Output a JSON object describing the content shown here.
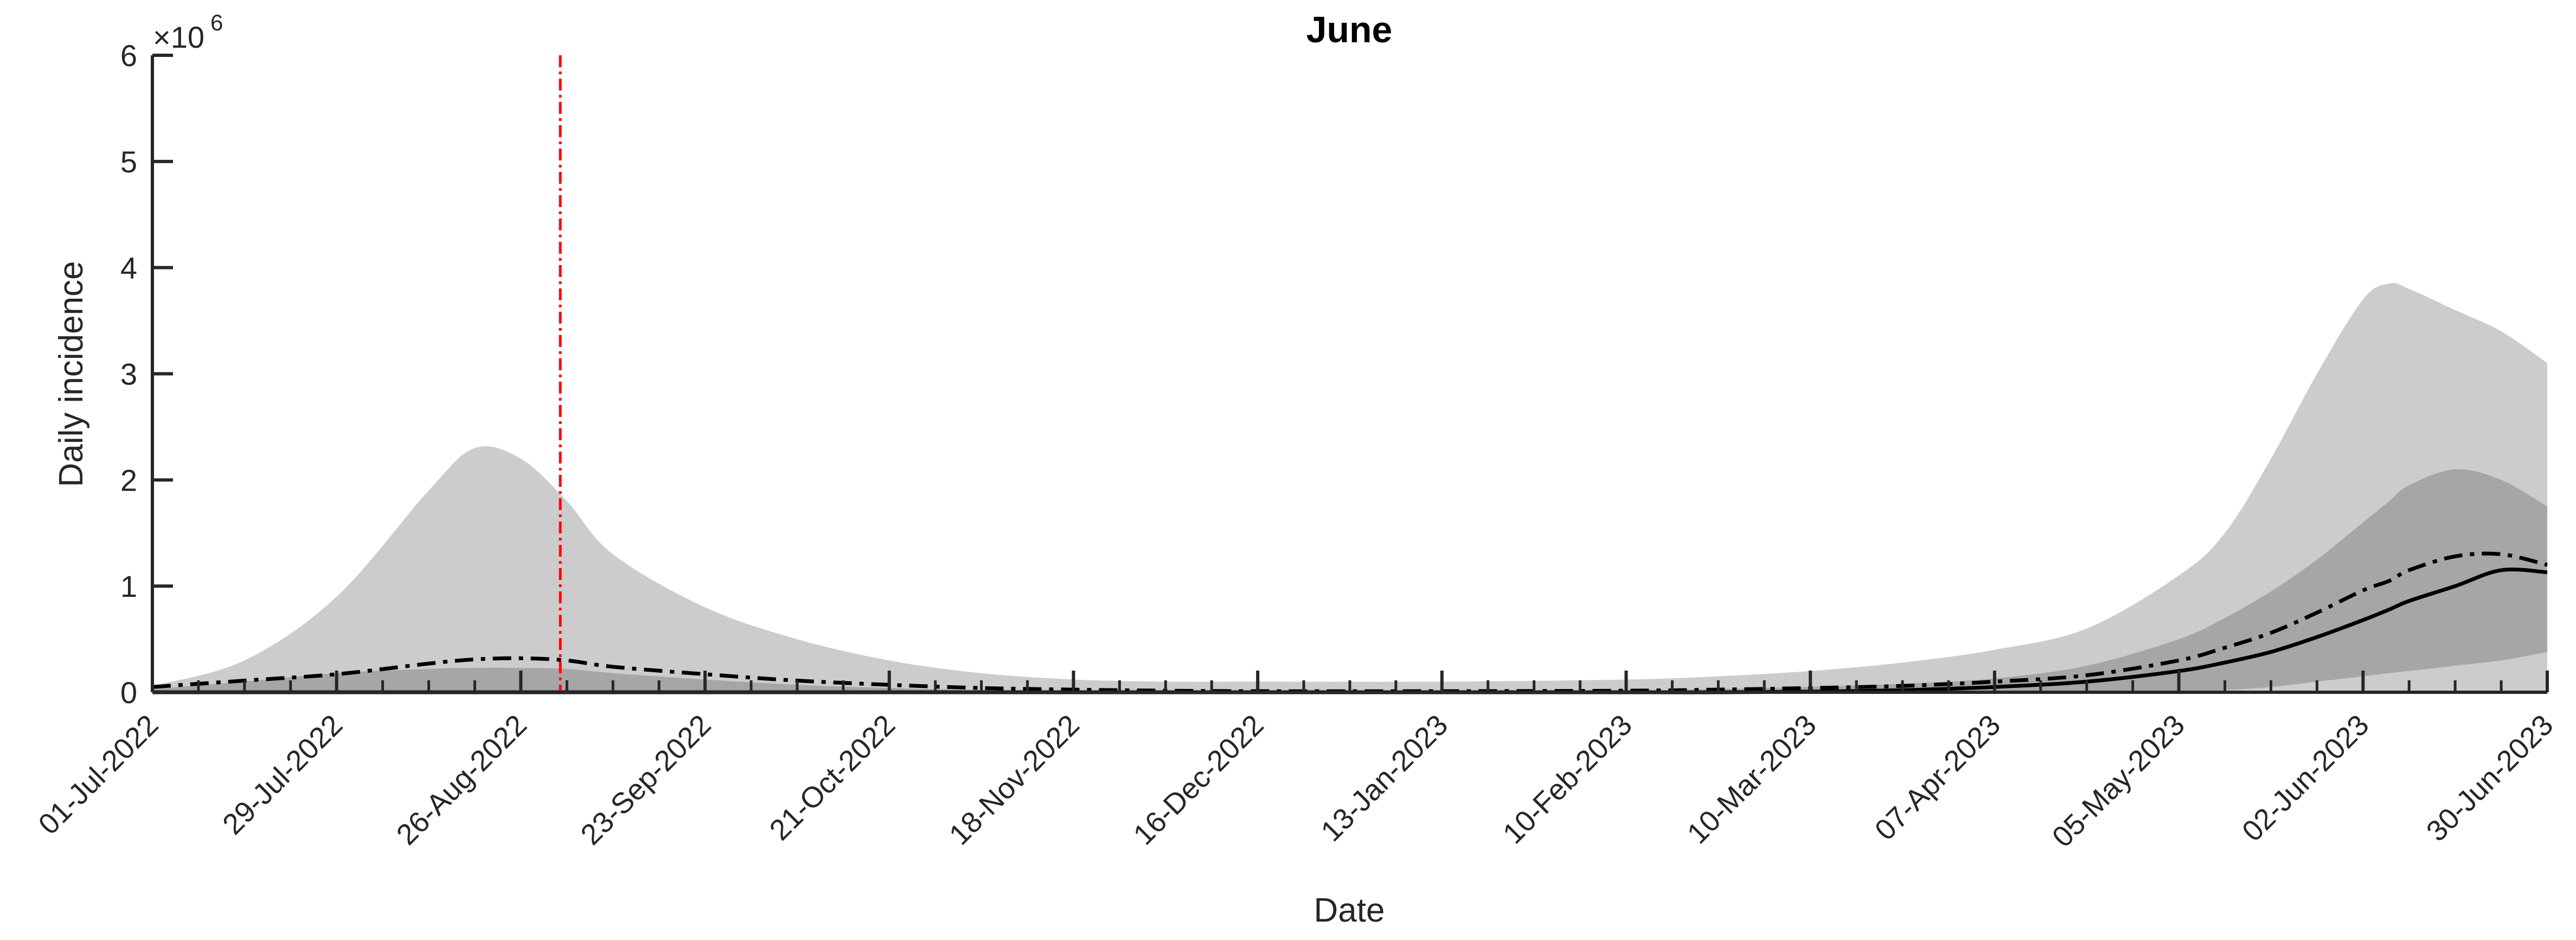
{
  "chart_data": {
    "type": "area",
    "title": "June",
    "xlabel": "Date",
    "ylabel": "Daily incidence",
    "y_exponent_label": "×10",
    "y_exponent_power": "6",
    "x_start": "2022-07-01",
    "x_end": "2023-06-30",
    "ylim": [
      0,
      6000000
    ],
    "y_ticks": [
      0,
      1000000,
      2000000,
      3000000,
      4000000,
      5000000,
      6000000
    ],
    "y_tick_labels": [
      "0",
      "1",
      "2",
      "3",
      "4",
      "5",
      "6"
    ],
    "x_ticks": [
      "2022-07-01",
      "2022-07-29",
      "2022-08-26",
      "2022-09-23",
      "2022-10-21",
      "2022-11-18",
      "2022-12-16",
      "2023-01-13",
      "2023-02-10",
      "2023-03-10",
      "2023-04-07",
      "2023-05-05",
      "2023-06-02",
      "2023-06-30"
    ],
    "x_tick_labels": [
      "01-Jul-2022",
      "29-Jul-2022",
      "26-Aug-2022",
      "23-Sep-2022",
      "21-Oct-2022",
      "18-Nov-2022",
      "16-Dec-2022",
      "13-Jan-2023",
      "10-Feb-2023",
      "10-Mar-2023",
      "07-Apr-2023",
      "05-May-2023",
      "02-Jun-2023",
      "30-Jun-2023"
    ],
    "vertical_marker_date": "2022-09-01",
    "grid": false,
    "legend": "none",
    "dates": [
      "2022-07-01",
      "2022-07-15",
      "2022-07-29",
      "2022-08-12",
      "2022-08-19",
      "2022-08-26",
      "2022-09-02",
      "2022-09-09",
      "2022-09-23",
      "2022-10-07",
      "2022-10-21",
      "2022-11-04",
      "2022-11-18",
      "2022-12-02",
      "2022-12-16",
      "2023-01-13",
      "2023-02-10",
      "2023-02-24",
      "2023-03-10",
      "2023-03-24",
      "2023-04-07",
      "2023-04-21",
      "2023-05-05",
      "2023-05-12",
      "2023-05-19",
      "2023-05-26",
      "2023-06-02",
      "2023-06-06",
      "2023-06-09",
      "2023-06-16",
      "2023-06-23",
      "2023-06-30"
    ],
    "bands": [
      {
        "color": "#cccccc",
        "lower": [
          0,
          0,
          0,
          0,
          0,
          0,
          0,
          0,
          0,
          0,
          0,
          0,
          0,
          0,
          0,
          0,
          0,
          0,
          0,
          0,
          0,
          0,
          0,
          0,
          0,
          0,
          0,
          0,
          0,
          0,
          0,
          0
        ],
        "upper": [
          60000,
          300000,
          900000,
          1900000,
          2300000,
          2200000,
          1800000,
          1300000,
          800000,
          500000,
          300000,
          180000,
          120000,
          100000,
          100000,
          100000,
          120000,
          150000,
          200000,
          280000,
          400000,
          600000,
          1100000,
          1500000,
          2200000,
          3000000,
          3700000,
          3850000,
          3800000,
          3600000,
          3400000,
          3100000
        ]
      },
      {
        "color": "#a6a6a6",
        "lower": [
          0,
          0,
          0,
          0,
          0,
          0,
          0,
          0,
          0,
          0,
          0,
          0,
          0,
          0,
          0,
          0,
          0,
          0,
          0,
          0,
          0,
          0,
          0,
          20000,
          50000,
          100000,
          150000,
          180000,
          200000,
          250000,
          300000,
          380000
        ],
        "upper": [
          30000,
          100000,
          180000,
          220000,
          230000,
          230000,
          220000,
          180000,
          120000,
          70000,
          40000,
          20000,
          10000,
          10000,
          10000,
          10000,
          15000,
          30000,
          50000,
          80000,
          130000,
          250000,
          500000,
          700000,
          950000,
          1250000,
          1600000,
          1800000,
          1950000,
          2100000,
          2000000,
          1750000
        ]
      }
    ],
    "series": [
      {
        "style": "dash-dot",
        "values": [
          50000,
          110000,
          170000,
          270000,
          310000,
          320000,
          300000,
          240000,
          170000,
          110000,
          70000,
          40000,
          25000,
          15000,
          10000,
          10000,
          15000,
          25000,
          40000,
          60000,
          100000,
          160000,
          300000,
          420000,
          560000,
          750000,
          960000,
          1050000,
          1150000,
          1280000,
          1300000,
          1200000
        ]
      },
      {
        "style": "solid",
        "values": [
          0,
          0,
          0,
          0,
          0,
          0,
          0,
          0,
          0,
          0,
          0,
          0,
          0,
          0,
          0,
          0,
          0,
          0,
          5000,
          20000,
          50000,
          100000,
          200000,
          280000,
          380000,
          520000,
          680000,
          780000,
          860000,
          1000000,
          1150000,
          1130000
        ]
      }
    ]
  }
}
